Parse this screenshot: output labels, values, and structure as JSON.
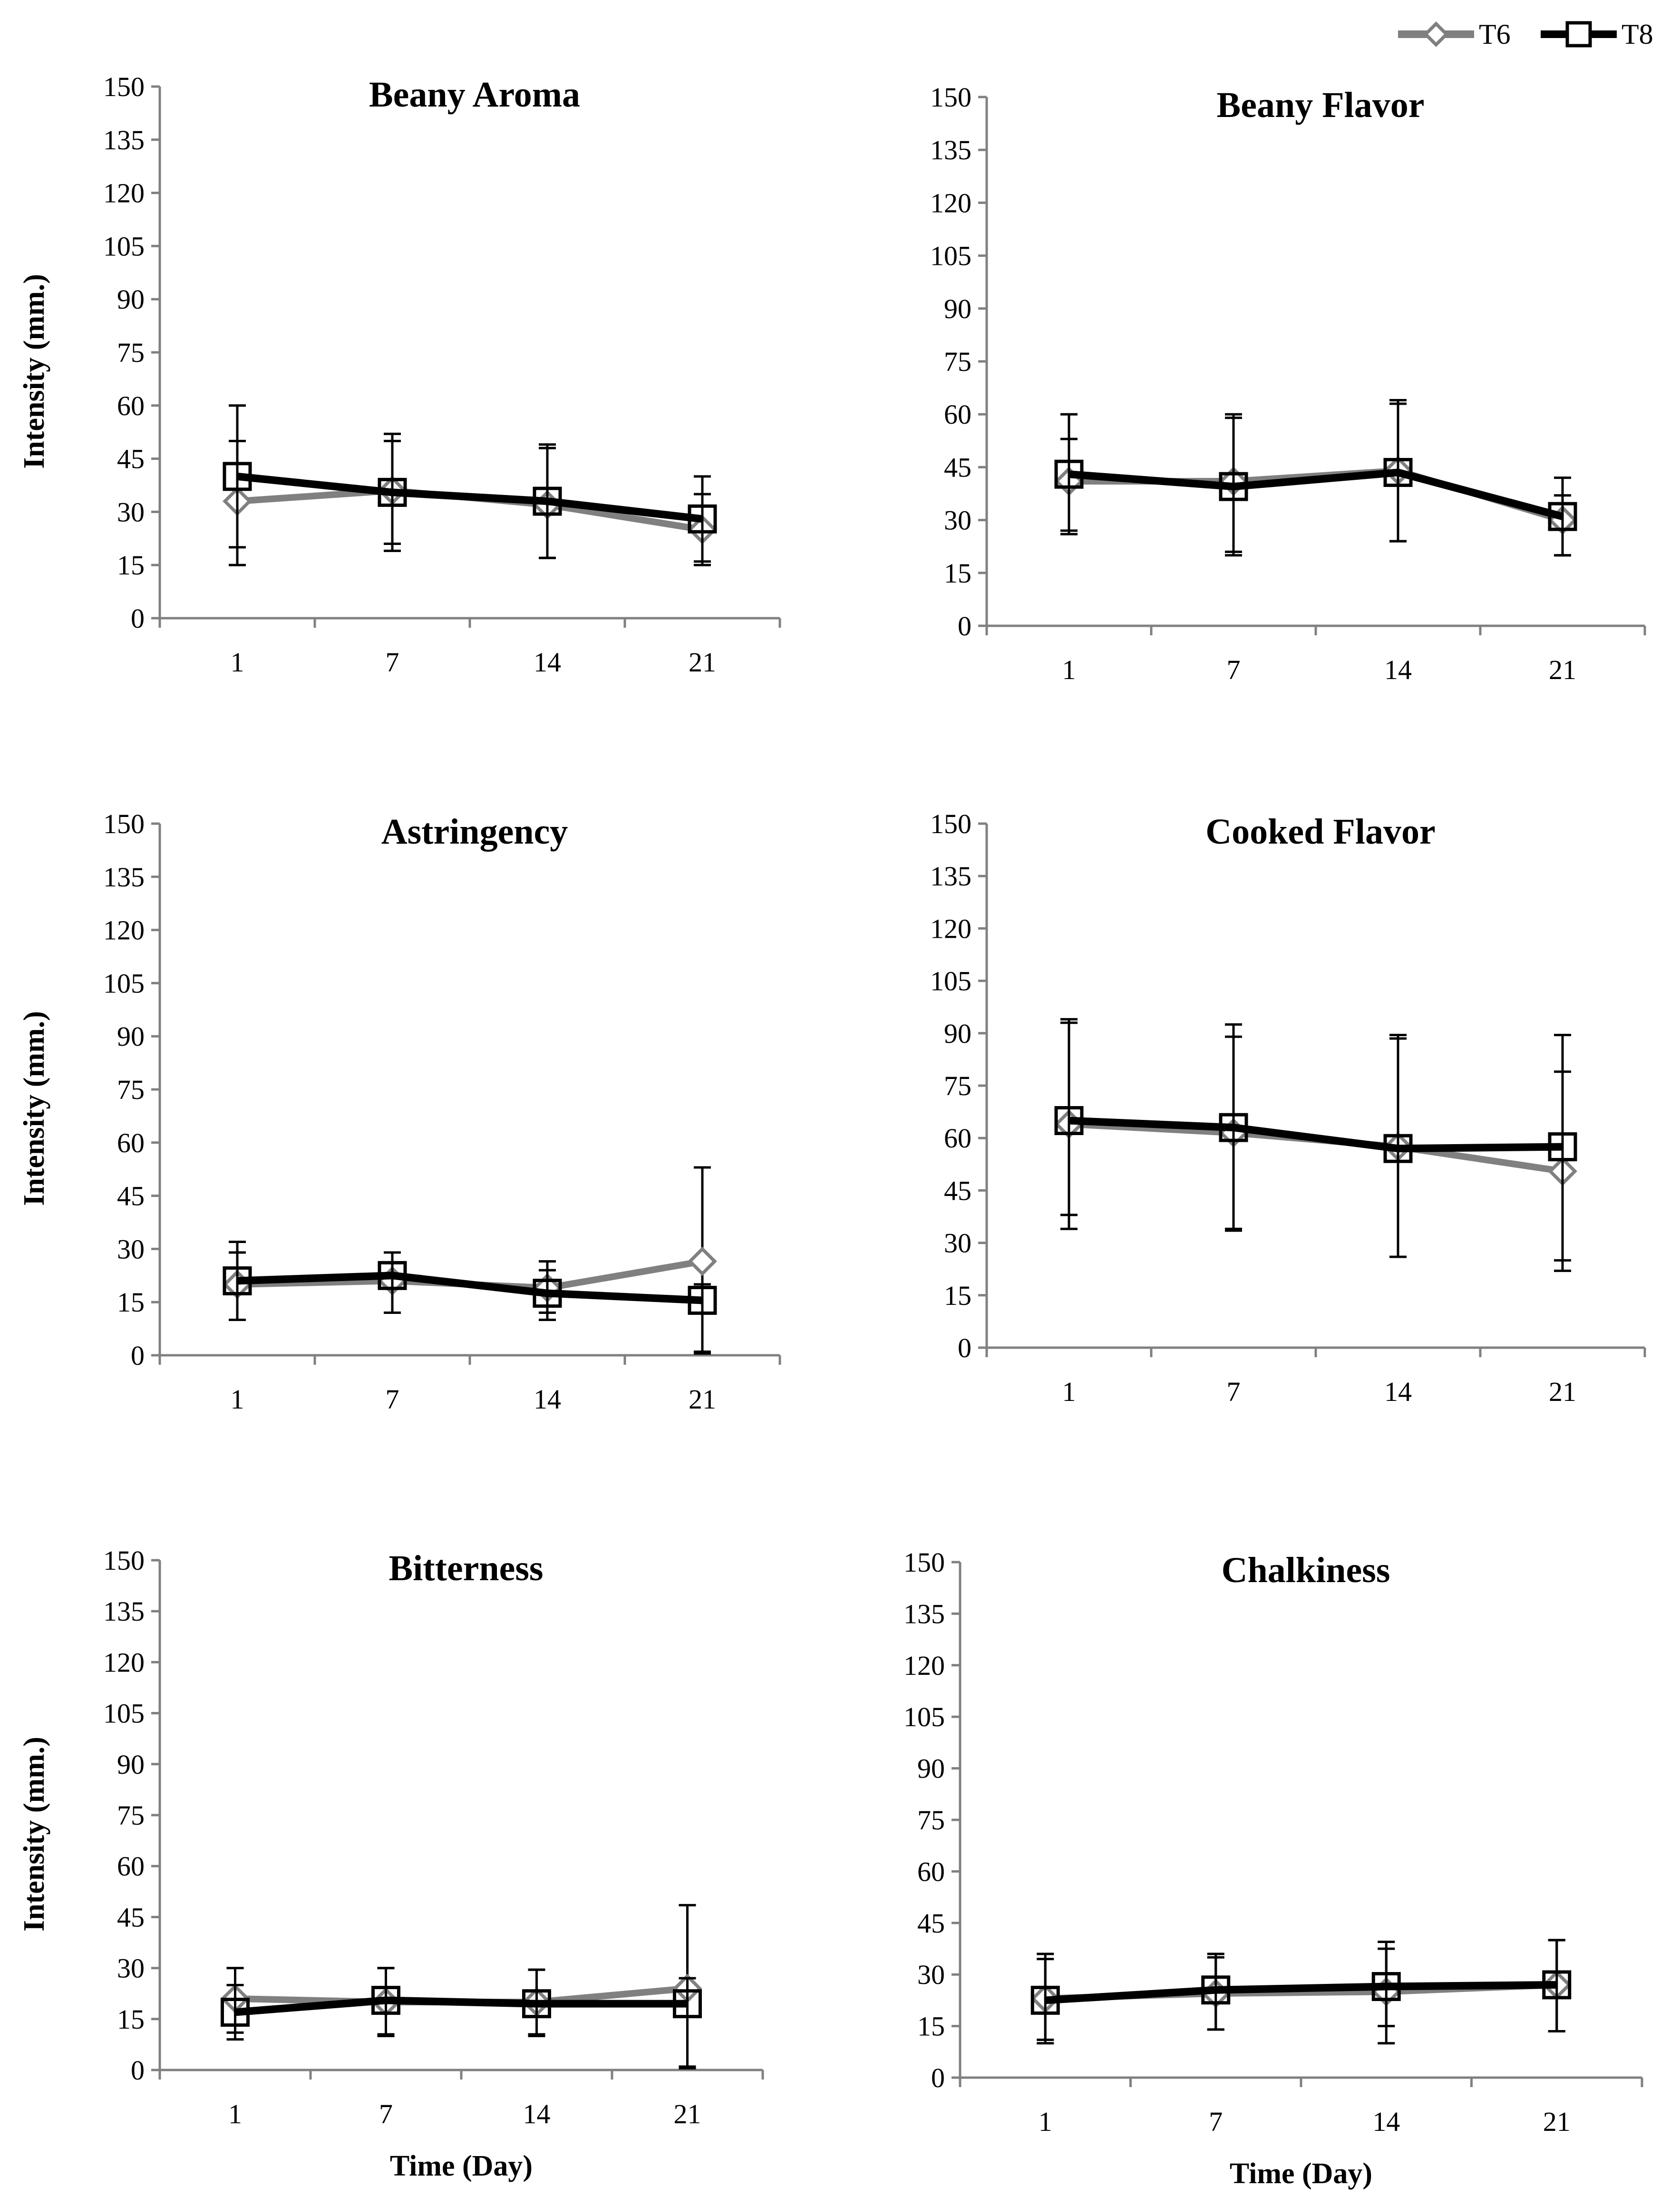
{
  "legend": {
    "items": [
      {
        "name": "T6",
        "color": "#808080",
        "marker": "diamond"
      },
      {
        "name": "T8",
        "color": "#000000",
        "marker": "square"
      }
    ]
  },
  "chart_data": [
    {
      "type": "line",
      "title": "Beany Aroma",
      "xlabel": "",
      "ylabel": "Intensity (mm.)",
      "categories": [
        "1",
        "7",
        "14",
        "21"
      ],
      "ylim": [
        0,
        150
      ],
      "yticks": [
        0,
        15,
        30,
        45,
        60,
        75,
        90,
        105,
        120,
        135,
        150
      ],
      "series": [
        {
          "name": "T6",
          "values": [
            33,
            36,
            32,
            25
          ],
          "err_low": [
            15,
            19,
            17,
            16
          ],
          "err_high": [
            50,
            50,
            48,
            35
          ]
        },
        {
          "name": "T8",
          "values": [
            40,
            35.5,
            33,
            28
          ],
          "err_low": [
            20,
            21,
            17,
            15
          ],
          "err_high": [
            60,
            52,
            49,
            40
          ]
        }
      ]
    },
    {
      "type": "line",
      "title": "Beany Flavor",
      "xlabel": "",
      "ylabel": "",
      "categories": [
        "1",
        "7",
        "14",
        "21"
      ],
      "ylim": [
        0,
        150
      ],
      "yticks": [
        0,
        15,
        30,
        45,
        60,
        75,
        90,
        105,
        120,
        135,
        150
      ],
      "series": [
        {
          "name": "T6",
          "values": [
            41,
            41,
            44,
            30
          ],
          "err_low": [
            26,
            21,
            24,
            20
          ],
          "err_high": [
            53,
            59,
            63,
            37
          ]
        },
        {
          "name": "T8",
          "values": [
            43,
            39.5,
            43.5,
            31
          ],
          "err_low": [
            27,
            20,
            24,
            20
          ],
          "err_high": [
            60,
            60,
            64,
            42
          ]
        }
      ]
    },
    {
      "type": "line",
      "title": "Astringency",
      "xlabel": "",
      "ylabel": "Intensity (mm.)",
      "categories": [
        "1",
        "7",
        "14",
        "21"
      ],
      "ylim": [
        0,
        150
      ],
      "yticks": [
        0,
        15,
        30,
        45,
        60,
        75,
        90,
        105,
        120,
        135,
        150
      ],
      "series": [
        {
          "name": "T6",
          "values": [
            20,
            21,
            19,
            26.5
          ],
          "err_low": [
            10,
            12,
            12,
            1
          ],
          "err_high": [
            29,
            26,
            24,
            53
          ]
        },
        {
          "name": "T8",
          "values": [
            21,
            22.5,
            17.5,
            15.5
          ],
          "err_low": [
            10,
            12,
            10,
            0.5
          ],
          "err_high": [
            32,
            29,
            26.5,
            20
          ]
        }
      ]
    },
    {
      "type": "line",
      "title": "Cooked Flavor",
      "xlabel": "",
      "ylabel": "",
      "categories": [
        "1",
        "7",
        "14",
        "21"
      ],
      "ylim": [
        0,
        150
      ],
      "yticks": [
        0,
        15,
        30,
        45,
        60,
        75,
        90,
        105,
        120,
        135,
        150
      ],
      "series": [
        {
          "name": "T6",
          "values": [
            64,
            61.5,
            57.5,
            50.5
          ],
          "err_low": [
            34,
            33.5,
            26,
            22
          ],
          "err_high": [
            93,
            89,
            88.5,
            79
          ]
        },
        {
          "name": "T8",
          "values": [
            65,
            63,
            57,
            57.5
          ],
          "err_low": [
            38,
            34,
            26,
            25
          ],
          "err_high": [
            94,
            92.5,
            89.5,
            89.5
          ]
        }
      ]
    },
    {
      "type": "line",
      "title": "Bitterness",
      "xlabel": "Time (Day)",
      "ylabel": "Intensity (mm.)",
      "categories": [
        "1",
        "7",
        "14",
        "21"
      ],
      "ylim": [
        0,
        150
      ],
      "yticks": [
        0,
        15,
        30,
        45,
        60,
        75,
        90,
        105,
        120,
        135,
        150
      ],
      "series": [
        {
          "name": "T6",
          "values": [
            21,
            20,
            20,
            24
          ],
          "err_low": [
            11,
            10.5,
            10.5,
            1
          ],
          "err_high": [
            30,
            30,
            29.5,
            48.5
          ]
        },
        {
          "name": "T8",
          "values": [
            17,
            20.5,
            19.5,
            19.5
          ],
          "err_low": [
            9,
            10,
            10,
            0.5
          ],
          "err_high": [
            25,
            30,
            29.5,
            27
          ]
        }
      ]
    },
    {
      "type": "line",
      "title": "Chalkiness",
      "xlabel": "Time (Day)",
      "ylabel": "",
      "categories": [
        "1",
        "7",
        "14",
        "21"
      ],
      "ylim": [
        0,
        150
      ],
      "yticks": [
        0,
        15,
        30,
        45,
        60,
        75,
        90,
        105,
        120,
        135,
        150
      ],
      "series": [
        {
          "name": "T6",
          "values": [
            23,
            24.5,
            25,
            27
          ],
          "err_low": [
            10,
            14,
            10,
            13.5
          ],
          "err_high": [
            36,
            35,
            37.5,
            40
          ]
        },
        {
          "name": "T8",
          "values": [
            22.5,
            25.5,
            26.5,
            27
          ],
          "err_low": [
            11,
            14,
            15,
            13.5
          ],
          "err_high": [
            34.5,
            36,
            39.5,
            40
          ]
        }
      ]
    }
  ]
}
